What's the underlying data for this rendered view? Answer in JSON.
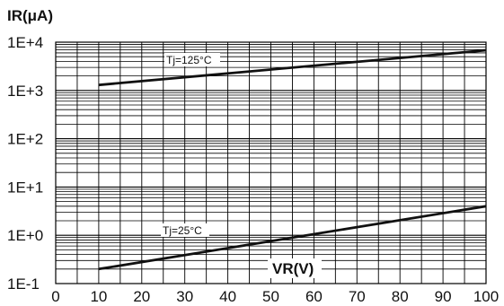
{
  "chart_data": {
    "type": "line",
    "ylabel": "IR(μA)",
    "xlabel": "VR(V)",
    "x_ticks": [
      "0",
      "10",
      "20",
      "30",
      "40",
      "50",
      "60",
      "70",
      "80",
      "90",
      "100"
    ],
    "y_ticks": [
      "1E-1",
      "1E+0",
      "1E+1",
      "1E+2",
      "1E+3",
      "1E+4"
    ],
    "xlim": [
      0,
      100
    ],
    "ylim": [
      0.1,
      10000
    ],
    "y_scale": "log",
    "grid": true,
    "series": [
      {
        "name": "Tj=125°C",
        "x": [
          10,
          100
        ],
        "y": [
          1300,
          6800
        ]
      },
      {
        "name": "Tj=25°C",
        "x": [
          10,
          100
        ],
        "y": [
          0.2,
          4
        ]
      }
    ]
  }
}
